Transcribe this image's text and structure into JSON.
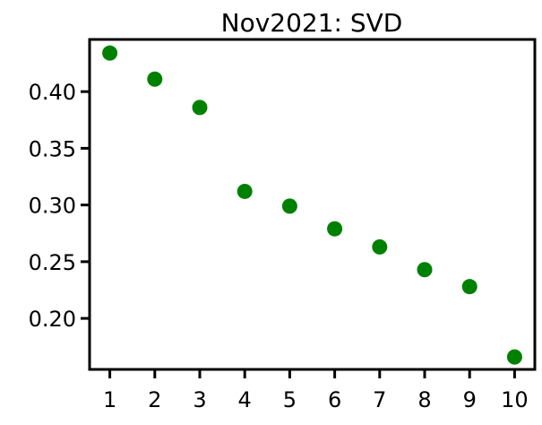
{
  "chart_data": {
    "type": "scatter",
    "title": "Nov2021: SVD",
    "xlabel": "",
    "ylabel": "",
    "x": [
      1,
      2,
      3,
      4,
      5,
      6,
      7,
      8,
      9,
      10
    ],
    "series": [
      {
        "values": [
          0.434,
          0.411,
          0.386,
          0.312,
          0.299,
          0.279,
          0.263,
          0.243,
          0.228,
          0.166
        ],
        "color": "#008000"
      }
    ],
    "xticks": [
      "1",
      "2",
      "3",
      "4",
      "5",
      "6",
      "7",
      "8",
      "9",
      "10"
    ],
    "yticks": [
      "0.20",
      "0.25",
      "0.30",
      "0.35",
      "0.40"
    ],
    "ytick_values": [
      0.2,
      0.25,
      0.3,
      0.35,
      0.4
    ],
    "xlim": [
      0.55,
      10.45
    ],
    "ylim": [
      0.155,
      0.446
    ],
    "grid": false,
    "legend": false
  }
}
